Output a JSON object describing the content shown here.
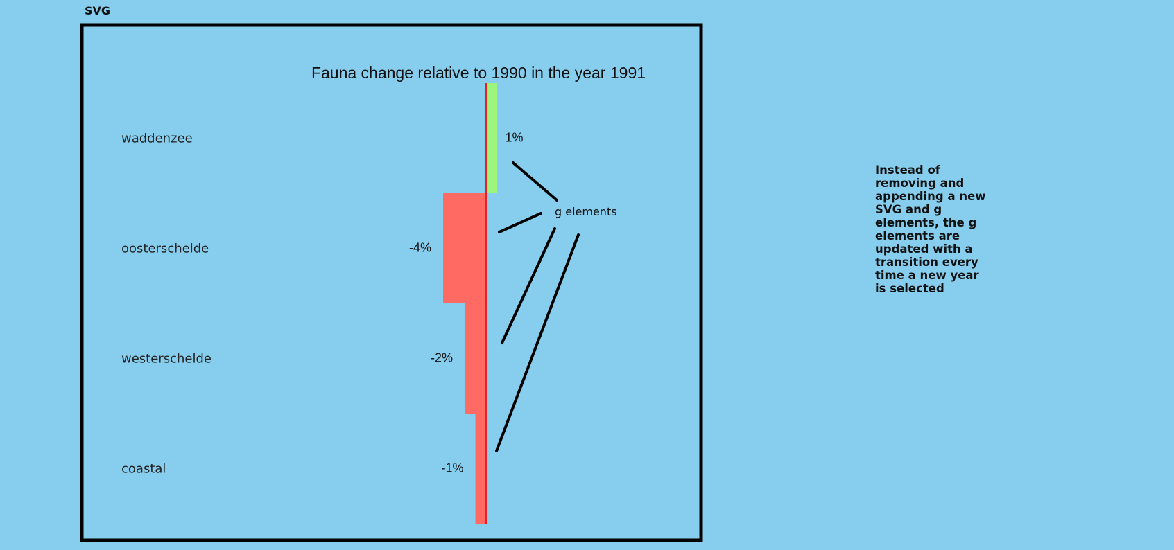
{
  "svg_label": "SVG",
  "annotation_label": "g elements",
  "note": "Instead of removing and appending a new SVG and g elements, the g elements are updated with a transition every time a new year is selected",
  "colors": {
    "background": "#87CEEE",
    "positive": "#9EF57E",
    "negative": "#FF6A63",
    "zero_line": "#E82020",
    "frame": "#000000"
  },
  "chart_data": {
    "type": "bar",
    "orientation": "horizontal",
    "title": "Fauna change relative to 1990 in the year 1991",
    "categories": [
      "waddenzee",
      "oosterschelde",
      "westerschelde",
      "coastal"
    ],
    "values": [
      1,
      -4,
      -2,
      -1
    ],
    "value_labels": [
      "1%",
      "-4%",
      "-2%",
      "-1%"
    ],
    "unit": "%",
    "grid": false
  }
}
